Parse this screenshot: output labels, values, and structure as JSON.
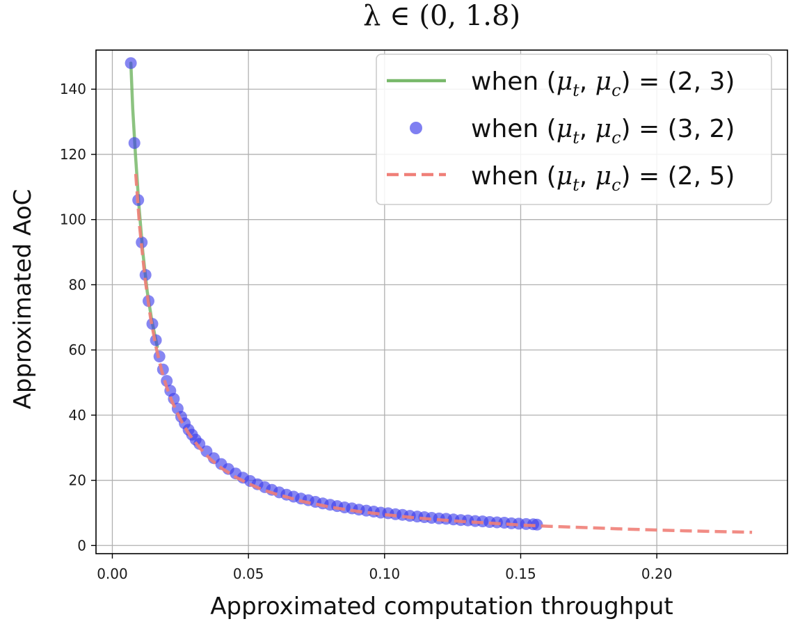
{
  "chart_data": {
    "type": "line",
    "title": "λ ∈ (0, 1.8)",
    "xlabel": "Approximated computation throughput",
    "ylabel": "Approximated AoC",
    "xlim": [
      -0.006,
      0.248
    ],
    "ylim": [
      -2.5,
      152
    ],
    "x_ticks": [
      0.0,
      0.05,
      0.1,
      0.15,
      0.2
    ],
    "x_tick_labels": [
      "0.00",
      "0.05",
      "0.10",
      "0.15",
      "0.20"
    ],
    "y_ticks": [
      0,
      20,
      40,
      60,
      80,
      100,
      120,
      140
    ],
    "y_tick_labels": [
      "0",
      "20",
      "40",
      "60",
      "80",
      "100",
      "120",
      "140"
    ],
    "grid": true,
    "legend_position": "top-right",
    "series": [
      {
        "name": "when (μt, μc) = (2, 3)",
        "legend": {
          "prefix": "when (",
          "v1": "μ",
          "s1": "t",
          "sep": ", ",
          "v2": "μ",
          "s2": "c",
          "eq": ") = (2, 3)"
        },
        "style": "solid-line",
        "color": "#78b86a",
        "x": [
          0.0068,
          0.0075,
          0.0085,
          0.0098,
          0.0112,
          0.0128,
          0.0145,
          0.0165
        ],
        "y": [
          148,
          134,
          120,
          104,
          90,
          78,
          69,
          61
        ]
      },
      {
        "name": "when (μt, μc) = (3, 2)",
        "legend": {
          "prefix": "when (",
          "v1": "μ",
          "s1": "t",
          "sep": ", ",
          "v2": "μ",
          "s2": "c",
          "eq": ") = (3, 2)"
        },
        "style": "markers",
        "color": "#3b3bea",
        "x": [
          0.0068,
          0.0081,
          0.0095,
          0.0108,
          0.0122,
          0.0133,
          0.0147,
          0.016,
          0.0173,
          0.0186,
          0.02,
          0.0213,
          0.0226,
          0.024,
          0.0253,
          0.0266,
          0.028,
          0.0293,
          0.0306,
          0.032,
          0.0346,
          0.0373,
          0.04,
          0.0426,
          0.0453,
          0.048,
          0.0506,
          0.0533,
          0.056,
          0.0586,
          0.0613,
          0.064,
          0.0666,
          0.0693,
          0.072,
          0.0746,
          0.0773,
          0.08,
          0.0826,
          0.0853,
          0.088,
          0.0906,
          0.0933,
          0.096,
          0.0986,
          0.1013,
          0.104,
          0.1066,
          0.1093,
          0.112,
          0.1146,
          0.1173,
          0.12,
          0.1226,
          0.1253,
          0.128,
          0.1306,
          0.1333,
          0.136,
          0.1386,
          0.1413,
          0.144,
          0.1466,
          0.1493,
          0.152,
          0.1546,
          0.156
        ],
        "y": [
          148,
          123.5,
          106,
          93,
          83,
          75,
          68,
          63,
          58,
          54,
          50.5,
          47.5,
          45,
          42,
          39.5,
          37.5,
          35.5,
          34,
          32.5,
          31.2,
          28.9,
          26.8,
          25.0,
          23.5,
          22.1,
          20.8,
          19.8,
          18.8,
          17.9,
          17.1,
          16.3,
          15.6,
          15.0,
          14.4,
          13.9,
          13.4,
          12.9,
          12.5,
          12.1,
          11.7,
          11.4,
          11.0,
          10.7,
          10.4,
          10.1,
          9.9,
          9.6,
          9.4,
          9.1,
          8.9,
          8.7,
          8.5,
          8.3,
          8.2,
          8.0,
          7.8,
          7.7,
          7.5,
          7.4,
          7.2,
          7.1,
          7.0,
          6.8,
          6.7,
          6.6,
          6.5,
          6.4
        ]
      },
      {
        "name": "when (μt, μc) = (2, 5)",
        "legend": {
          "prefix": "when (",
          "v1": "μ",
          "s1": "t",
          "sep": ", ",
          "v2": "μ",
          "s2": "c",
          "eq": ") = (2, 5)"
        },
        "style": "dashed-line",
        "color": "#ef7f78",
        "x": [
          0.0086,
          0.01,
          0.012,
          0.014,
          0.016,
          0.018,
          0.02,
          0.022,
          0.025,
          0.028,
          0.032,
          0.036,
          0.04,
          0.045,
          0.05,
          0.055,
          0.06,
          0.07,
          0.08,
          0.09,
          0.1,
          0.11,
          0.12,
          0.13,
          0.14,
          0.15,
          0.16,
          0.17,
          0.18,
          0.19,
          0.2,
          0.21,
          0.22,
          0.235
        ],
        "y": [
          114,
          98,
          82,
          70,
          61,
          54,
          48.5,
          44,
          38.7,
          34.4,
          30.0,
          26.5,
          23.8,
          21.1,
          19.0,
          17.2,
          15.8,
          13.5,
          11.8,
          10.5,
          9.5,
          8.6,
          7.9,
          7.3,
          6.8,
          6.3,
          5.9,
          5.6,
          5.3,
          5.0,
          4.75,
          4.52,
          4.32,
          4.05
        ]
      }
    ]
  }
}
